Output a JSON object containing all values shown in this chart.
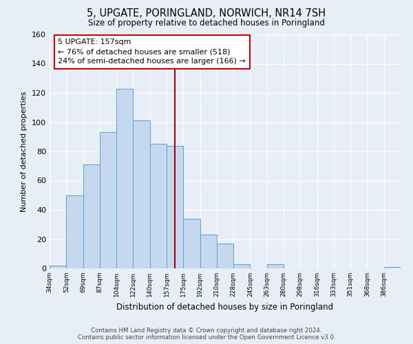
{
  "title": "5, UPGATE, PORINGLAND, NORWICH, NR14 7SH",
  "subtitle": "Size of property relative to detached houses in Poringland",
  "xlabel": "Distribution of detached houses by size in Poringland",
  "ylabel": "Number of detached properties",
  "bin_labels": [
    "34sqm",
    "52sqm",
    "69sqm",
    "87sqm",
    "104sqm",
    "122sqm",
    "140sqm",
    "157sqm",
    "175sqm",
    "192sqm",
    "210sqm",
    "228sqm",
    "245sqm",
    "263sqm",
    "280sqm",
    "298sqm",
    "316sqm",
    "333sqm",
    "351sqm",
    "368sqm",
    "386sqm"
  ],
  "bar_values": [
    2,
    50,
    71,
    93,
    123,
    101,
    85,
    84,
    34,
    23,
    17,
    3,
    0,
    3,
    0,
    0,
    0,
    0,
    0,
    0,
    1
  ],
  "bar_color": "#c5d8ee",
  "bar_edge_color": "#5a9fd4",
  "vline_x_index": 7,
  "vline_color": "#aa0000",
  "annotation_title": "5 UPGATE: 157sqm",
  "annotation_line1": "← 76% of detached houses are smaller (518)",
  "annotation_line2": "24% of semi-detached houses are larger (166) →",
  "annotation_box_color": "#ffffff",
  "annotation_box_edge": "#cc0000",
  "ylim": [
    0,
    160
  ],
  "yticks": [
    0,
    20,
    40,
    60,
    80,
    100,
    120,
    140,
    160
  ],
  "footer_line1": "Contains HM Land Registry data © Crown copyright and database right 2024.",
  "footer_line2": "Contains public sector information licensed under the Open Government Licence v3.0.",
  "bg_color": "#e8eef8",
  "plot_bg_color": "#e8eef8",
  "grid_color": "#ffffff"
}
